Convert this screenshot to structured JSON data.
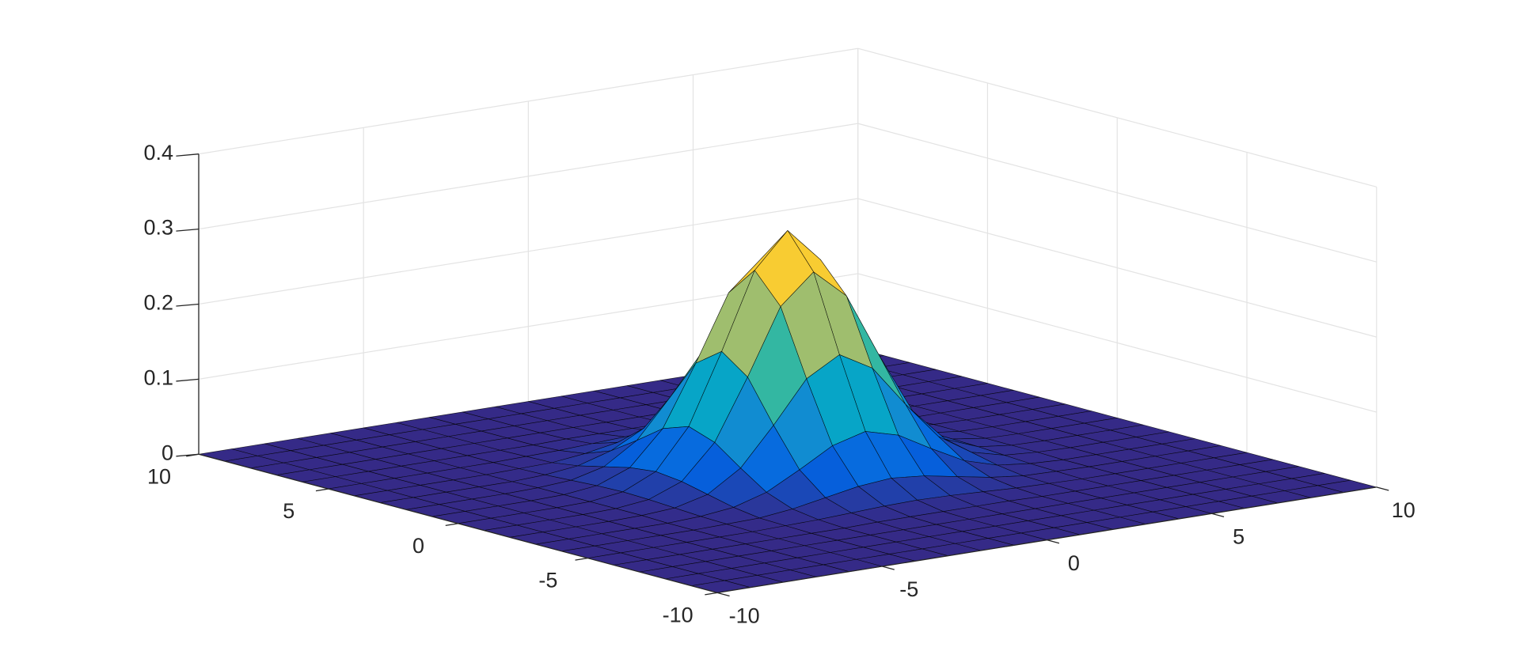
{
  "chart_data": {
    "type": "surface",
    "x": [
      -10,
      -9,
      -8,
      -7,
      -6,
      -5,
      -4,
      -3,
      -2,
      -1,
      0,
      1,
      2,
      3,
      4,
      5,
      6,
      7,
      8,
      9,
      10
    ],
    "y": [
      -10,
      -9,
      -8,
      -7,
      -6,
      -5,
      -4,
      -3,
      -2,
      -1,
      0,
      1,
      2,
      3,
      4,
      5,
      6,
      7,
      8,
      9,
      10
    ],
    "z": [
      [
        0,
        0,
        0,
        0,
        0,
        0,
        0,
        0,
        0,
        0,
        0,
        0,
        0,
        0,
        0,
        0,
        0,
        0,
        0,
        0,
        0
      ],
      [
        0,
        0,
        0,
        0,
        0,
        0,
        0,
        0,
        0,
        0,
        0,
        0,
        0,
        0,
        0,
        0,
        0,
        0,
        0,
        0,
        0
      ],
      [
        0,
        0,
        0,
        0,
        0,
        0,
        0,
        0,
        0,
        0,
        0,
        0,
        0,
        0,
        0,
        0,
        0,
        0,
        0,
        0,
        0
      ],
      [
        0,
        0,
        0,
        0,
        0,
        0,
        0,
        0,
        0,
        0,
        0,
        0,
        0,
        0,
        0,
        0,
        0,
        0,
        0,
        0,
        0
      ],
      [
        0,
        0,
        0,
        0,
        0,
        0,
        0,
        0,
        0.001,
        0.001,
        0.001,
        0.001,
        0.001,
        0,
        0,
        0,
        0,
        0,
        0,
        0,
        0
      ],
      [
        0,
        0,
        0,
        0,
        0,
        0,
        0.001,
        0.002,
        0.004,
        0.006,
        0.007,
        0.006,
        0.004,
        0.002,
        0.001,
        0,
        0,
        0,
        0,
        0,
        0
      ],
      [
        0,
        0,
        0,
        0,
        0,
        0.001,
        0.002,
        0.007,
        0.015,
        0.023,
        0.027,
        0.023,
        0.015,
        0.007,
        0.002,
        0.001,
        0,
        0,
        0,
        0,
        0
      ],
      [
        0,
        0,
        0,
        0,
        0,
        0.002,
        0.007,
        0.02,
        0.043,
        0.068,
        0.08,
        0.068,
        0.043,
        0.02,
        0.007,
        0.002,
        0,
        0,
        0,
        0,
        0
      ],
      [
        0,
        0,
        0,
        0,
        0.001,
        0.004,
        0.015,
        0.043,
        0.093,
        0.148,
        0.173,
        0.148,
        0.093,
        0.043,
        0.015,
        0.004,
        0.001,
        0,
        0,
        0,
        0
      ],
      [
        0,
        0,
        0,
        0,
        0.001,
        0.006,
        0.023,
        0.068,
        0.148,
        0.235,
        0.274,
        0.235,
        0.148,
        0.068,
        0.023,
        0.006,
        0.001,
        0,
        0,
        0,
        0
      ],
      [
        0,
        0,
        0,
        0,
        0.001,
        0.007,
        0.027,
        0.08,
        0.173,
        0.274,
        0.32,
        0.274,
        0.173,
        0.08,
        0.027,
        0.007,
        0.001,
        0,
        0,
        0,
        0
      ],
      [
        0,
        0,
        0,
        0,
        0.001,
        0.006,
        0.023,
        0.068,
        0.148,
        0.235,
        0.274,
        0.235,
        0.148,
        0.068,
        0.023,
        0.006,
        0.001,
        0,
        0,
        0,
        0
      ],
      [
        0,
        0,
        0,
        0,
        0.001,
        0.004,
        0.015,
        0.043,
        0.093,
        0.148,
        0.173,
        0.148,
        0.093,
        0.043,
        0.015,
        0.004,
        0.001,
        0,
        0,
        0,
        0
      ],
      [
        0,
        0,
        0,
        0,
        0,
        0.002,
        0.007,
        0.02,
        0.043,
        0.068,
        0.08,
        0.068,
        0.043,
        0.02,
        0.007,
        0.002,
        0,
        0,
        0,
        0,
        0
      ],
      [
        0,
        0,
        0,
        0,
        0,
        0.001,
        0.002,
        0.007,
        0.015,
        0.023,
        0.027,
        0.023,
        0.015,
        0.007,
        0.002,
        0.001,
        0,
        0,
        0,
        0,
        0
      ],
      [
        0,
        0,
        0,
        0,
        0,
        0,
        0.001,
        0.002,
        0.004,
        0.006,
        0.007,
        0.006,
        0.004,
        0.002,
        0.001,
        0,
        0,
        0,
        0,
        0,
        0
      ],
      [
        0,
        0,
        0,
        0,
        0,
        0,
        0,
        0,
        0.001,
        0.001,
        0.001,
        0.001,
        0.001,
        0,
        0,
        0,
        0,
        0,
        0,
        0,
        0
      ],
      [
        0,
        0,
        0,
        0,
        0,
        0,
        0,
        0,
        0,
        0,
        0,
        0,
        0,
        0,
        0,
        0,
        0,
        0,
        0,
        0,
        0
      ],
      [
        0,
        0,
        0,
        0,
        0,
        0,
        0,
        0,
        0,
        0,
        0,
        0,
        0,
        0,
        0,
        0,
        0,
        0,
        0,
        0,
        0
      ],
      [
        0,
        0,
        0,
        0,
        0,
        0,
        0,
        0,
        0,
        0,
        0,
        0,
        0,
        0,
        0,
        0,
        0,
        0,
        0,
        0,
        0
      ],
      [
        0,
        0,
        0,
        0,
        0,
        0,
        0,
        0,
        0,
        0,
        0,
        0,
        0,
        0,
        0,
        0,
        0,
        0,
        0,
        0,
        0
      ]
    ],
    "xlim": [
      -10,
      10
    ],
    "ylim": [
      -10,
      10
    ],
    "zlim": [
      0,
      0.4
    ],
    "xticks": [
      -10,
      -5,
      0,
      5,
      10
    ],
    "yticks": [
      -10,
      -5,
      0,
      5,
      10
    ],
    "zticks": [
      0,
      0.1,
      0.2,
      0.3,
      0.4
    ],
    "grid": true,
    "colormap": [
      "#352a87",
      "#0363e1",
      "#1485d4",
      "#06a7c6",
      "#38b99e",
      "#92bf73",
      "#d9ba56",
      "#fcce2e",
      "#f9fb0e"
    ]
  }
}
